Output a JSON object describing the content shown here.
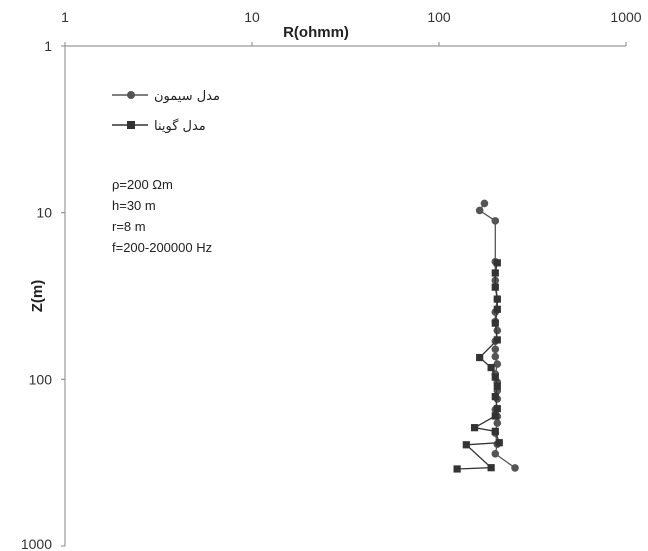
{
  "chart_data": {
    "type": "line",
    "title": "",
    "xlabel": "R(ohmm)",
    "ylabel": "Z(m)",
    "xscale": "log",
    "yscale": "log",
    "xlim": [
      1,
      1000
    ],
    "ylim": [
      1,
      1000
    ],
    "y_inverted": true,
    "x_axis_position": "top",
    "grid": false,
    "legend_position": "top-left",
    "x_tick_labels": [
      "1",
      "10",
      "100",
      "1000"
    ],
    "y_tick_labels": [
      "1",
      "10",
      "100",
      "1000"
    ],
    "series": [
      {
        "name": "مدل سیمون",
        "marker": "circle",
        "color": "#555555",
        "points": [
          {
            "x": 175,
            "y": 8.8
          },
          {
            "x": 165,
            "y": 9.7
          },
          {
            "x": 200,
            "y": 11.2
          },
          {
            "x": 200,
            "y": 19.7
          },
          {
            "x": 200,
            "y": 25.5
          },
          {
            "x": 205,
            "y": 33
          },
          {
            "x": 200,
            "y": 39.5
          },
          {
            "x": 200,
            "y": 45
          },
          {
            "x": 205,
            "y": 51
          },
          {
            "x": 200,
            "y": 59
          },
          {
            "x": 200,
            "y": 66
          },
          {
            "x": 200,
            "y": 73
          },
          {
            "x": 205,
            "y": 81
          },
          {
            "x": 200,
            "y": 93
          },
          {
            "x": 205,
            "y": 104
          },
          {
            "x": 205,
            "y": 117
          },
          {
            "x": 205,
            "y": 131
          },
          {
            "x": 200,
            "y": 152
          },
          {
            "x": 205,
            "y": 167
          },
          {
            "x": 205,
            "y": 183
          },
          {
            "x": 200,
            "y": 210
          },
          {
            "x": 205,
            "y": 245
          },
          {
            "x": 200,
            "y": 280
          },
          {
            "x": 255,
            "y": 340
          }
        ]
      },
      {
        "name": "مدل گوینا",
        "marker": "square",
        "color": "#333333",
        "points": [
          {
            "x": 205,
            "y": 20
          },
          {
            "x": 200,
            "y": 23
          },
          {
            "x": 200,
            "y": 28
          },
          {
            "x": 205,
            "y": 33
          },
          {
            "x": 205,
            "y": 38
          },
          {
            "x": 200,
            "y": 46
          },
          {
            "x": 205,
            "y": 58
          },
          {
            "x": 165,
            "y": 74
          },
          {
            "x": 190,
            "y": 85
          },
          {
            "x": 200,
            "y": 97
          },
          {
            "x": 205,
            "y": 110
          },
          {
            "x": 200,
            "y": 127
          },
          {
            "x": 205,
            "y": 150
          },
          {
            "x": 200,
            "y": 166
          },
          {
            "x": 155,
            "y": 195
          },
          {
            "x": 200,
            "y": 205
          },
          {
            "x": 210,
            "y": 240
          },
          {
            "x": 140,
            "y": 247
          },
          {
            "x": 190,
            "y": 339
          },
          {
            "x": 125,
            "y": 345
          }
        ]
      }
    ],
    "annotations": [
      "ρ=200  Ωm",
      "h=30 m",
      "r=8 m",
      "f=200-200000 Hz"
    ]
  }
}
